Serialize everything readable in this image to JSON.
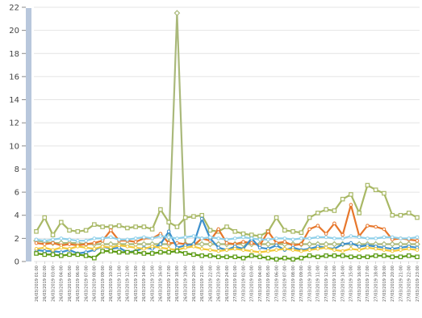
{
  "chart_data": {
    "type": "line",
    "title": "",
    "xlabel": "",
    "ylabel": "",
    "ylim": [
      0,
      22
    ],
    "yticks": [
      0,
      2,
      4,
      6,
      8,
      10,
      12,
      14,
      16,
      18,
      20,
      22
    ],
    "grid": true,
    "legend": "none",
    "x": [
      "26/03/2019 01:00",
      "26/03/2019 02:00",
      "26/03/2019 03:00",
      "26/03/2019 04:00",
      "26/03/2019 05:00",
      "26/03/2019 06:00",
      "26/03/2019 07:00",
      "26/03/2019 08:00",
      "26/03/2019 09:00",
      "26/03/2019 10:00",
      "26/03/2019 11:00",
      "26/03/2019 12:00",
      "26/03/2019 13:00",
      "26/03/2019 14:00",
      "26/03/2019 15:00",
      "26/03/2019 16:00",
      "26/03/2019 17:00",
      "26/03/2019 18:00",
      "26/03/2019 19:00",
      "26/03/2019 20:00",
      "26/03/2019 21:00",
      "26/03/2019 22:00",
      "26/03/2019 23:00",
      "26/03/2019 24:00",
      "27/03/2019 01:00",
      "27/03/2019 02:00",
      "27/03/2019 03:00",
      "27/03/2019 04:00",
      "27/03/2019 05:00",
      "27/03/2019 06:00",
      "27/03/2019 07:00",
      "27/03/2019 08:00",
      "27/03/2019 09:00",
      "27/03/2019 10:00",
      "27/03/2019 11:00",
      "27/03/2019 12:00",
      "27/03/2019 13:00",
      "27/03/2019 14:00",
      "27/03/2019 15:00",
      "27/03/2019 16:00",
      "27/03/2019 17:00",
      "27/03/2019 18:00",
      "27/03/2019 19:00",
      "27/03/2019 20:00",
      "27/03/2019 21:00",
      "27/03/2019 22:00",
      "27/03/2019 23:00"
    ],
    "series": [
      {
        "color": "#aab97b",
        "marker": "diamond",
        "values": [
          1.8,
          1.7,
          1.6,
          1.6,
          1.6,
          1.6,
          1.5,
          1.5,
          1.5,
          1.5,
          1.5,
          1.5,
          1.5,
          1.5,
          1.5,
          1.5,
          1.5,
          21.5,
          1.5,
          1.5,
          1.5,
          1.5,
          1.5,
          1.5,
          1.5,
          1.5,
          1.5,
          1.5,
          1.5,
          1.5,
          1.5,
          1.5,
          1.5,
          1.5,
          1.5,
          1.5,
          1.5,
          1.5,
          1.5,
          1.5,
          1.5,
          1.5,
          1.5,
          1.5,
          1.5,
          1.5,
          1.5
        ]
      },
      {
        "color": "#a8b865",
        "marker": "square",
        "values": [
          2.6,
          3.8,
          2.3,
          3.4,
          2.7,
          2.6,
          2.7,
          3.2,
          3.0,
          3.0,
          3.1,
          2.9,
          3.0,
          3.0,
          2.8,
          4.5,
          3.4,
          3.0,
          3.8,
          3.9,
          4.0,
          2.7,
          2.6,
          3.0,
          2.6,
          2.4,
          2.3,
          2.2,
          2.6,
          3.8,
          2.7,
          2.6,
          2.5,
          3.8,
          4.2,
          4.5,
          4.4,
          5.4,
          5.8,
          4.2,
          6.6,
          6.2,
          5.9,
          4.0,
          4.0,
          4.2,
          3.8
        ]
      },
      {
        "color": "#e7772c",
        "marker": "circle",
        "values": [
          1.6,
          1.5,
          1.6,
          1.4,
          1.5,
          1.4,
          1.5,
          1.6,
          1.8,
          2.7,
          1.8,
          1.8,
          1.7,
          2.0,
          2.0,
          2.4,
          1.6,
          1.6,
          1.5,
          1.4,
          2.0,
          1.8,
          2.8,
          1.6,
          1.5,
          1.7,
          1.6,
          1.4,
          2.6,
          1.6,
          1.7,
          1.4,
          1.5,
          2.8,
          3.1,
          2.4,
          3.3,
          2.3,
          4.9,
          2.2,
          3.1,
          3.0,
          2.8,
          1.9,
          2.0,
          1.9,
          1.8
        ]
      },
      {
        "color": "#3d90cc",
        "marker": "circle",
        "values": [
          1.0,
          0.9,
          0.9,
          0.8,
          1.0,
          0.7,
          0.8,
          1.0,
          1.3,
          1.1,
          1.2,
          0.8,
          0.9,
          1.2,
          1.1,
          1.5,
          2.6,
          1.2,
          1.4,
          1.5,
          3.7,
          2.0,
          1.2,
          1.0,
          1.3,
          1.1,
          2.0,
          1.2,
          1.1,
          1.4,
          1.0,
          1.2,
          1.0,
          1.1,
          1.3,
          1.2,
          1.1,
          1.5,
          1.6,
          1.3,
          1.4,
          1.3,
          1.2,
          1.1,
          1.2,
          1.3,
          1.2
        ]
      },
      {
        "color": "#8ed0ea",
        "marker": "circle",
        "values": [
          1.9,
          1.8,
          1.9,
          2.0,
          1.9,
          1.8,
          1.8,
          2.0,
          2.0,
          2.1,
          1.9,
          1.9,
          2.0,
          2.1,
          2.0,
          2.2,
          2.1,
          2.0,
          2.1,
          2.2,
          2.0,
          2.1,
          2.0,
          1.9,
          2.0,
          2.1,
          2.0,
          1.9,
          1.9,
          2.0,
          2.0,
          1.9,
          2.0,
          2.0,
          2.1,
          2.1,
          2.0,
          2.0,
          2.2,
          2.1,
          2.0,
          2.0,
          2.1,
          2.1,
          2.0,
          2.0,
          2.1
        ]
      },
      {
        "color": "#f2c83a",
        "marker": "circle",
        "values": [
          1.1,
          1.2,
          1.0,
          1.2,
          1.1,
          1.3,
          1.2,
          1.1,
          1.3,
          1.2,
          1.4,
          1.3,
          1.2,
          1.1,
          1.3,
          1.2,
          1.1,
          1.0,
          1.2,
          1.3,
          1.1,
          1.0,
          0.9,
          1.0,
          1.1,
          1.0,
          0.9,
          0.8,
          0.9,
          1.0,
          1.1,
          1.0,
          0.9,
          1.0,
          1.1,
          1.2,
          1.0,
          0.9,
          1.1,
          1.0,
          1.2,
          1.1,
          1.0,
          0.9,
          1.0,
          1.1,
          1.0
        ]
      },
      {
        "color": "#5a9a12",
        "marker": "square",
        "values": [
          0.7,
          0.6,
          0.6,
          0.5,
          0.6,
          0.6,
          0.5,
          0.3,
          0.9,
          0.9,
          0.8,
          0.8,
          0.8,
          0.7,
          0.7,
          0.8,
          0.8,
          0.9,
          0.7,
          0.6,
          0.5,
          0.5,
          0.4,
          0.4,
          0.4,
          0.3,
          0.5,
          0.4,
          0.3,
          0.2,
          0.3,
          0.2,
          0.3,
          0.5,
          0.4,
          0.5,
          0.5,
          0.5,
          0.4,
          0.4,
          0.4,
          0.5,
          0.5,
          0.4,
          0.4,
          0.5,
          0.4
        ]
      }
    ]
  }
}
